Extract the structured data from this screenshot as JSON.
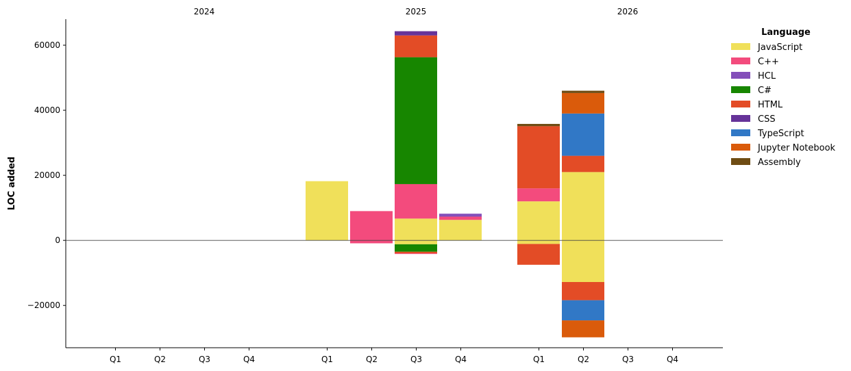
{
  "chart_data": {
    "type": "bar",
    "stacked": true,
    "diverging": true,
    "ylabel": "LOC added",
    "ylim": [
      -33000,
      68000
    ],
    "yticks": [
      -20000,
      0,
      20000,
      40000,
      60000
    ],
    "ytick_labels": [
      "−20000",
      "0",
      "20000",
      "40000",
      "60000"
    ],
    "years": [
      "2024",
      "2025",
      "2026"
    ],
    "quarters": [
      "Q1",
      "Q2",
      "Q3",
      "Q4"
    ],
    "legend": {
      "title": "Language",
      "placement": "right",
      "entries": [
        {
          "name": "JavaScript",
          "color": "#f0e05a"
        },
        {
          "name": "C++",
          "color": "#f34b7d"
        },
        {
          "name": "HCL",
          "color": "#844fba"
        },
        {
          "name": "C#",
          "color": "#178600"
        },
        {
          "name": "HTML",
          "color": "#e34c26"
        },
        {
          "name": "CSS",
          "color": "#663399"
        },
        {
          "name": "TypeScript",
          "color": "#3178c6"
        },
        {
          "name": "Jupyter Notebook",
          "color": "#da5b0b"
        },
        {
          "name": "Assembly",
          "color": "#6e4c13"
        }
      ]
    },
    "bars": [
      {
        "year": "2025",
        "quarter": "Q1",
        "positive": [
          {
            "language": "JavaScript",
            "value": 18200
          }
        ],
        "negative": []
      },
      {
        "year": "2025",
        "quarter": "Q2",
        "positive": [
          {
            "language": "C++",
            "value": 9000
          }
        ],
        "negative": [
          {
            "language": "C++",
            "value": -900
          }
        ]
      },
      {
        "year": "2025",
        "quarter": "Q3",
        "positive": [
          {
            "language": "JavaScript",
            "value": 6700
          },
          {
            "language": "C++",
            "value": 10600
          },
          {
            "language": "C#",
            "value": 39000
          },
          {
            "language": "HTML",
            "value": 6700
          },
          {
            "language": "CSS",
            "value": 1300
          }
        ],
        "negative": [
          {
            "language": "JavaScript",
            "value": -1200
          },
          {
            "language": "C#",
            "value": -2300
          },
          {
            "language": "HTML",
            "value": -500
          },
          {
            "language": "C++",
            "value": -200
          }
        ]
      },
      {
        "year": "2025",
        "quarter": "Q4",
        "positive": [
          {
            "language": "JavaScript",
            "value": 6300
          },
          {
            "language": "C++",
            "value": 1000
          },
          {
            "language": "HCL",
            "value": 900
          }
        ],
        "negative": []
      },
      {
        "year": "2026",
        "quarter": "Q1",
        "positive": [
          {
            "language": "JavaScript",
            "value": 12000
          },
          {
            "language": "C++",
            "value": 4000
          },
          {
            "language": "HTML",
            "value": 19100
          },
          {
            "language": "Assembly",
            "value": 700
          }
        ],
        "negative": [
          {
            "language": "JavaScript",
            "value": -1100
          },
          {
            "language": "HTML",
            "value": -6400
          }
        ]
      },
      {
        "year": "2026",
        "quarter": "Q2",
        "positive": [
          {
            "language": "JavaScript",
            "value": 21000
          },
          {
            "language": "HTML",
            "value": 5000
          },
          {
            "language": "TypeScript",
            "value": 13000
          },
          {
            "language": "Jupyter Notebook",
            "value": 6300
          },
          {
            "language": "Assembly",
            "value": 700
          }
        ],
        "negative": [
          {
            "language": "JavaScript",
            "value": -12800
          },
          {
            "language": "HTML",
            "value": -5600
          },
          {
            "language": "TypeScript",
            "value": -6200
          },
          {
            "language": "Jupyter Notebook",
            "value": -5200
          }
        ]
      }
    ]
  }
}
